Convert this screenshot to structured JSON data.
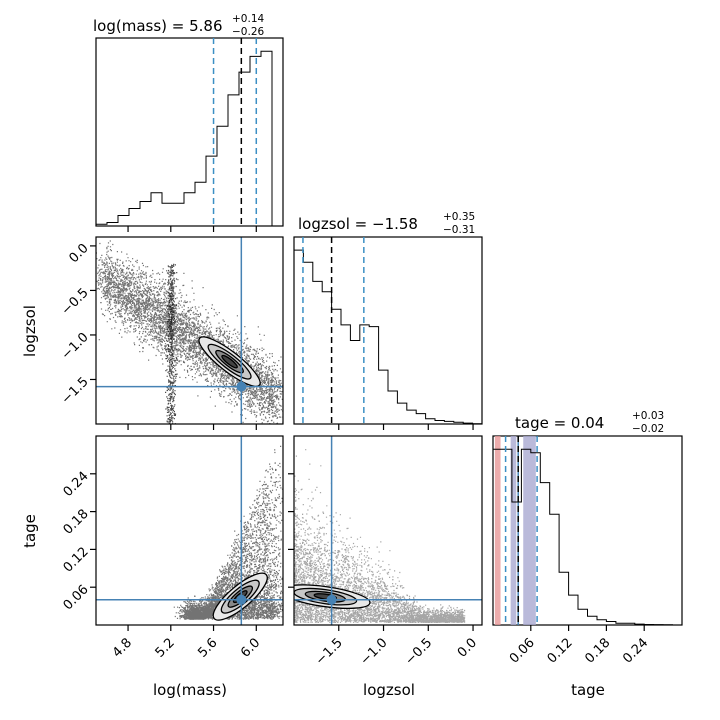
{
  "chart_data": {
    "type": "corner",
    "colors": {
      "median": "#000000",
      "quantile": "#3b8fc4",
      "truth": "#4682b4",
      "pink": "#e89898",
      "lavender": "#a9a9d1"
    },
    "parameters": [
      {
        "key": "mass",
        "label": "log(mass)",
        "lim": [
          4.5,
          6.25
        ],
        "ticks": [
          4.8,
          5.2,
          5.6,
          6.0
        ],
        "tick_labels": [
          "4.8",
          "5.2",
          "5.6",
          "6.0"
        ],
        "median": 5.86,
        "q16": 5.6,
        "q84": 6.0,
        "truth": 5.86,
        "title": {
          "main": "log(mass) = 5.86",
          "plus": "+0.14",
          "minus": "−0.26"
        },
        "hist": [
          0.01,
          0.02,
          0.06,
          0.1,
          0.14,
          0.19,
          0.13,
          0.13,
          0.19,
          0.25,
          0.4,
          0.57,
          0.75,
          0.88,
          0.97,
          1.0,
          0.0
        ]
      },
      {
        "key": "logzsol",
        "label": "logzsol",
        "lim": [
          -2.0,
          0.1
        ],
        "ticks": [
          -1.5,
          -1.0,
          -0.5,
          0.0
        ],
        "tick_labels": [
          "−1.5",
          "−1.0",
          "−0.5",
          "0.0"
        ],
        "median": -1.58,
        "q16": -1.9,
        "q84": -1.22,
        "truth": -1.58,
        "title": {
          "main": "logzsol = −1.58",
          "plus": "+0.35",
          "minus": "−0.31"
        },
        "hist": [
          1.0,
          0.93,
          0.82,
          0.76,
          0.66,
          0.57,
          0.48,
          0.57,
          0.56,
          0.31,
          0.19,
          0.12,
          0.08,
          0.06,
          0.03,
          0.02,
          0.015,
          0.01,
          0.005,
          0.002
        ]
      },
      {
        "key": "tage",
        "label": "tage",
        "lim": [
          0.0,
          0.3
        ],
        "ticks": [
          0.06,
          0.12,
          0.18,
          0.24
        ],
        "tick_labels": [
          "0.06",
          "0.12",
          "0.18",
          "0.24"
        ],
        "median": 0.04,
        "q16": 0.02,
        "q84": 0.07,
        "truth": 0.04,
        "title": {
          "main": "tage = 0.04",
          "plus": "+0.03",
          "minus": "−0.02"
        },
        "hist": [
          1.0,
          1.0,
          0.7,
          1.0,
          0.98,
          0.81,
          0.63,
          0.3,
          0.17,
          0.09,
          0.05,
          0.03,
          0.02,
          0.01,
          0.01,
          0.005,
          0.003,
          0.002,
          0.001,
          0.0
        ]
      }
    ],
    "y_tick_labels": {
      "logzsol": {
        "values": [
          0.0,
          -0.5,
          -1.0,
          -1.5
        ],
        "labels": [
          "0.0",
          "−0.5",
          "−1.0",
          "−1.5"
        ]
      },
      "tage": {
        "values": [
          0.24,
          0.18,
          0.12,
          0.06
        ],
        "labels": [
          "0.24",
          "0.18",
          "0.12",
          "0.06"
        ]
      }
    }
  }
}
